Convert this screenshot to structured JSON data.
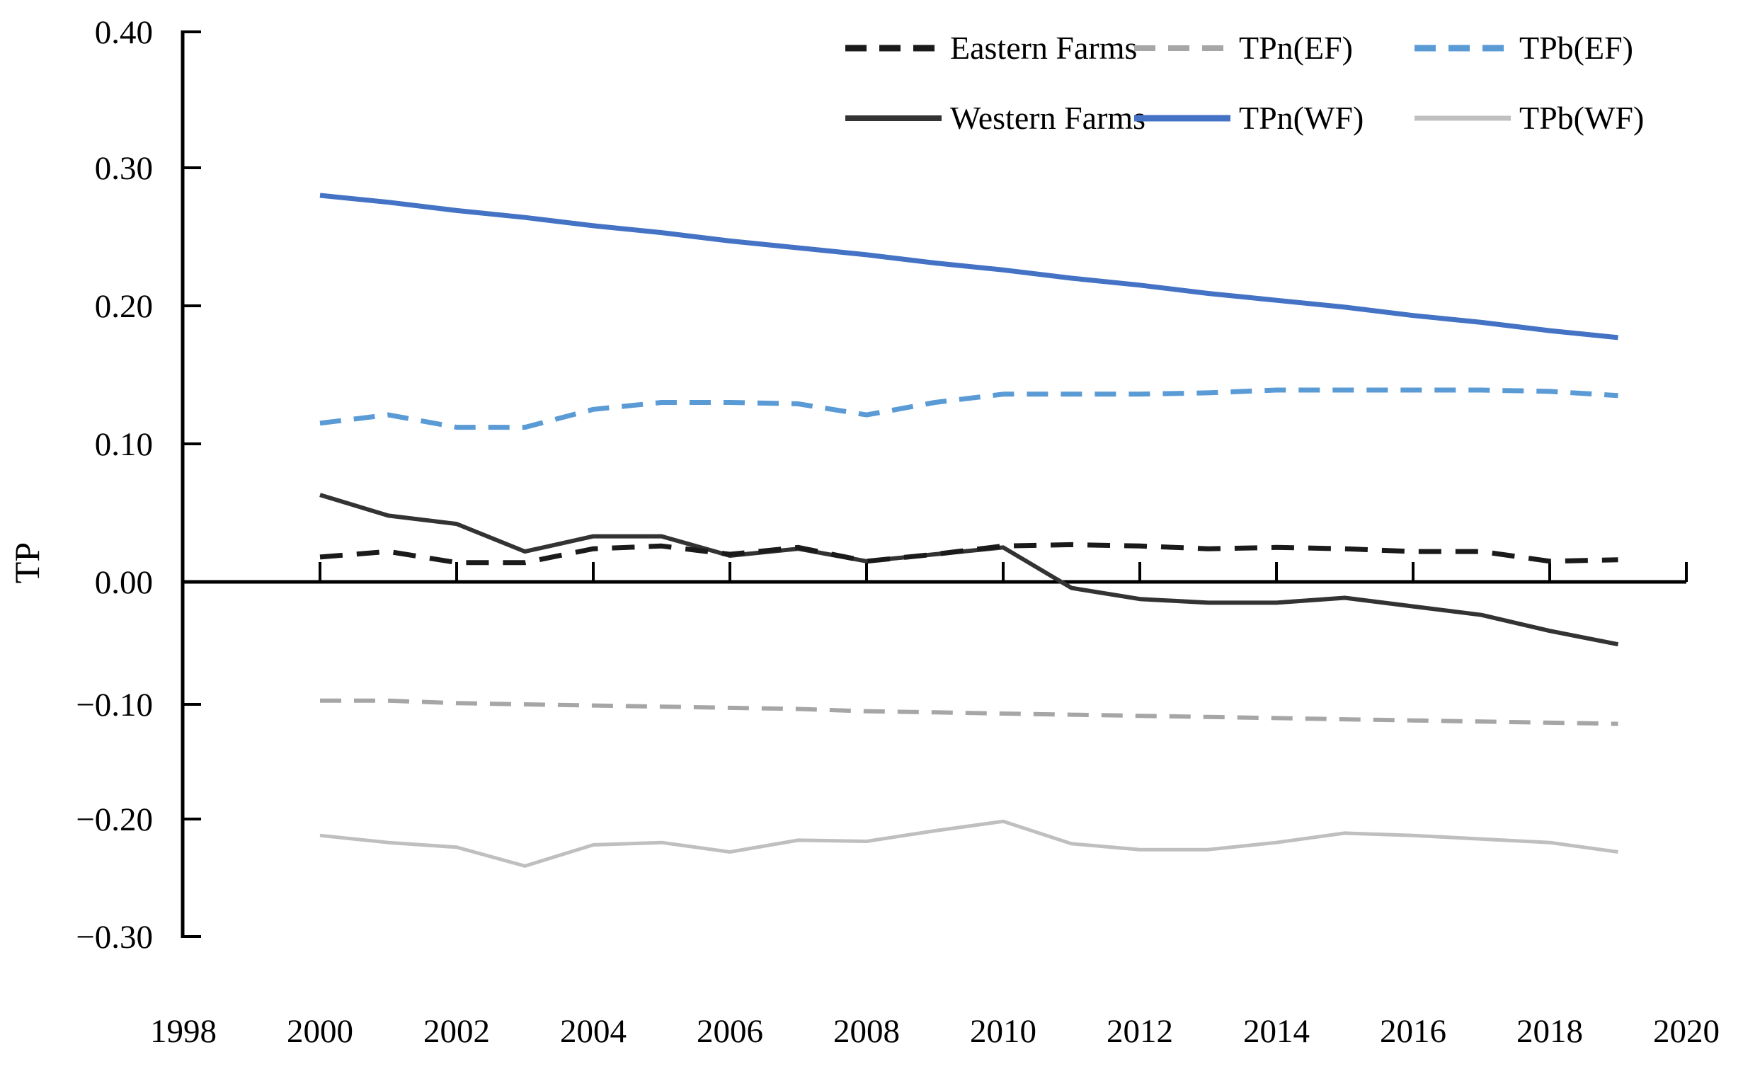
{
  "figure": {
    "y_axis_title": "TP"
  },
  "legend": {
    "items": [
      {
        "label": "Eastern Farms",
        "series": "eastern_farms"
      },
      {
        "label": "TPn(EF)",
        "series": "tpn_ef"
      },
      {
        "label": "TPb(EF)",
        "series": "tpb_ef"
      },
      {
        "label": "Western Farms",
        "series": "western_farms"
      },
      {
        "label": "TPn(WF)",
        "series": "tpn_wf"
      },
      {
        "label": "TPb(WF)",
        "series": "tpb_wf"
      }
    ]
  },
  "chart_data": {
    "type": "line",
    "title": "",
    "xlabel": "",
    "ylabel": "TP",
    "xlim": [
      1998,
      2020
    ],
    "ylim": [
      -0.3,
      0.4
    ],
    "grid": false,
    "legend_position": "top-right",
    "x_tick_labels": [
      "1998",
      "2000",
      "2002",
      "2004",
      "2006",
      "2008",
      "2010",
      "2012",
      "2014",
      "2016",
      "2018",
      "2020"
    ],
    "x_tick_values": [
      1998,
      2000,
      2002,
      2004,
      2006,
      2008,
      2010,
      2012,
      2014,
      2016,
      2018,
      2020
    ],
    "y_tick_labels": [
      "0.40",
      "0.30",
      "0.20",
      "0.10",
      "0.00",
      "−0.10",
      "−0.20",
      "−0.30"
    ],
    "y_tick_values": [
      0.4,
      0.3,
      0.2,
      0.1,
      0.0,
      -0.1,
      -0.2,
      -0.3
    ],
    "x": [
      2000,
      2001,
      2002,
      2003,
      2004,
      2005,
      2006,
      2007,
      2008,
      2009,
      2010,
      2011,
      2012,
      2013,
      2014,
      2015,
      2016,
      2017,
      2018,
      2019
    ],
    "series": [
      {
        "key": "tpn_wf",
        "name": "TPn(WF)",
        "color": "#4472c4",
        "dash": null,
        "width": 7,
        "values": [
          0.28,
          0.275,
          0.269,
          0.264,
          0.258,
          0.253,
          0.247,
          0.242,
          0.237,
          0.231,
          0.226,
          0.22,
          0.215,
          0.209,
          0.204,
          0.199,
          0.193,
          0.188,
          0.182,
          0.177
        ]
      },
      {
        "key": "tpb_ef",
        "name": "TPb(EF)",
        "color": "#5b9bd5",
        "dash": "30 18",
        "width": 7,
        "values": [
          0.115,
          0.121,
          0.112,
          0.112,
          0.125,
          0.13,
          0.13,
          0.129,
          0.121,
          0.13,
          0.136,
          0.136,
          0.136,
          0.137,
          0.139,
          0.139,
          0.139,
          0.139,
          0.138,
          0.135
        ]
      },
      {
        "key": "tpn_ef",
        "name": "TPn(EF)",
        "color": "#a6a6a6",
        "dash": "30 18",
        "width": 6,
        "values": [
          -0.097,
          -0.097,
          -0.099,
          -0.1,
          -0.101,
          -0.102,
          -0.103,
          -0.104,
          -0.106,
          -0.107,
          -0.108,
          -0.109,
          -0.11,
          -0.111,
          -0.112,
          -0.113,
          -0.114,
          -0.115,
          -0.116,
          -0.117
        ]
      },
      {
        "key": "tpb_wf",
        "name": "TPb(WF)",
        "color": "#bfbfbf",
        "dash": null,
        "width": 5,
        "values": [
          -0.214,
          -0.22,
          -0.224,
          -0.24,
          -0.222,
          -0.22,
          -0.228,
          -0.218,
          -0.219,
          -0.21,
          -0.202,
          -0.221,
          -0.226,
          -0.226,
          -0.22,
          -0.212,
          -0.214,
          -0.217,
          -0.22,
          -0.228
        ]
      },
      {
        "key": "western_farms",
        "name": "Western Farms",
        "color": "#333333",
        "dash": null,
        "width": 6,
        "values": [
          0.063,
          0.048,
          0.042,
          0.022,
          0.033,
          0.033,
          0.019,
          0.024,
          0.015,
          0.02,
          0.025,
          -0.005,
          -0.014,
          -0.017,
          -0.017,
          -0.013,
          -0.02,
          -0.027,
          -0.04,
          -0.051
        ]
      },
      {
        "key": "eastern_farms",
        "name": "Eastern Farms",
        "color": "#1a1a1a",
        "dash": "32 20",
        "width": 7,
        "values": [
          0.018,
          0.022,
          0.014,
          0.014,
          0.024,
          0.026,
          0.02,
          0.025,
          0.015,
          0.02,
          0.026,
          0.027,
          0.026,
          0.024,
          0.025,
          0.024,
          0.022,
          0.022,
          0.015,
          0.016
        ]
      }
    ]
  }
}
